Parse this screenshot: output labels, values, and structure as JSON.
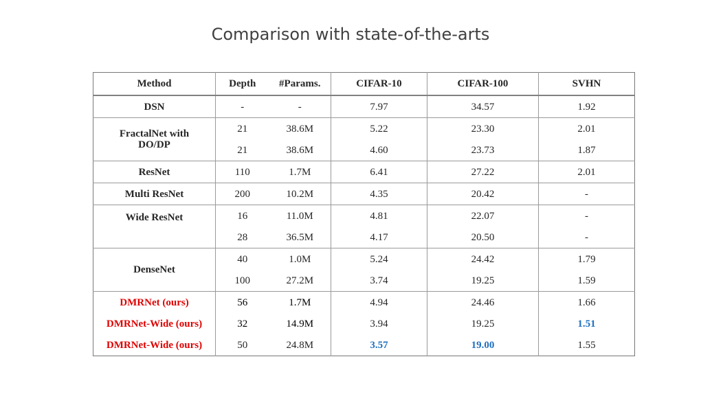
{
  "title": "Comparison with state-of-the-arts",
  "headers": [
    "Method",
    "Depth",
    "#Params.",
    "CIFAR-10",
    "CIFAR-100",
    "SVHN"
  ],
  "rows": [
    {
      "method": "DSN",
      "depth": "-",
      "params": "-",
      "c10": "7.97",
      "c100": "34.57",
      "svhn": "1.92"
    },
    {
      "method": "FractalNet with DO/DP",
      "depth": "21",
      "params": "38.6M",
      "c10": "5.22",
      "c100": "23.30",
      "svhn": "2.01"
    },
    {
      "depth": "21",
      "params": "38.6M",
      "c10": "4.60",
      "c100": "23.73",
      "svhn": "1.87"
    },
    {
      "method": "ResNet",
      "depth": "110",
      "params": "1.7M",
      "c10": "6.41",
      "c100": "27.22",
      "svhn": "2.01"
    },
    {
      "method": "Multi ResNet",
      "depth": "200",
      "params": "10.2M",
      "c10": "4.35",
      "c100": "20.42",
      "svhn": "-"
    },
    {
      "method": "Wide ResNet",
      "depth": "16",
      "params": "11.0M",
      "c10": "4.81",
      "c100": "22.07",
      "svhn": "-"
    },
    {
      "depth": "28",
      "params": "36.5M",
      "c10": "4.17",
      "c100": "20.50",
      "svhn": "-"
    },
    {
      "method": "DenseNet",
      "depth": "40",
      "params": "1.0M",
      "c10": "5.24",
      "c100": "24.42",
      "svhn": "1.79"
    },
    {
      "depth": "100",
      "params": "27.2M",
      "c10": "3.74",
      "c100": "19.25",
      "svhn": "1.59"
    },
    {
      "method": "DMRNet (ours)",
      "depth": "56",
      "params": "1.7M",
      "c10": "4.94",
      "c100": "24.46",
      "svhn": "1.66"
    },
    {
      "method": "DMRNet-Wide (ours)",
      "depth": "32",
      "params": "14.9M",
      "c10": "3.94",
      "c100": "19.25",
      "svhn": "1.51"
    },
    {
      "method": "DMRNet-Wide (ours)",
      "depth": "50",
      "params": "24.8M",
      "c10": "3.57",
      "c100": "19.00",
      "svhn": "1.55"
    }
  ],
  "colors": {
    "ours": "#e00000",
    "best": "#1f6fbf"
  }
}
